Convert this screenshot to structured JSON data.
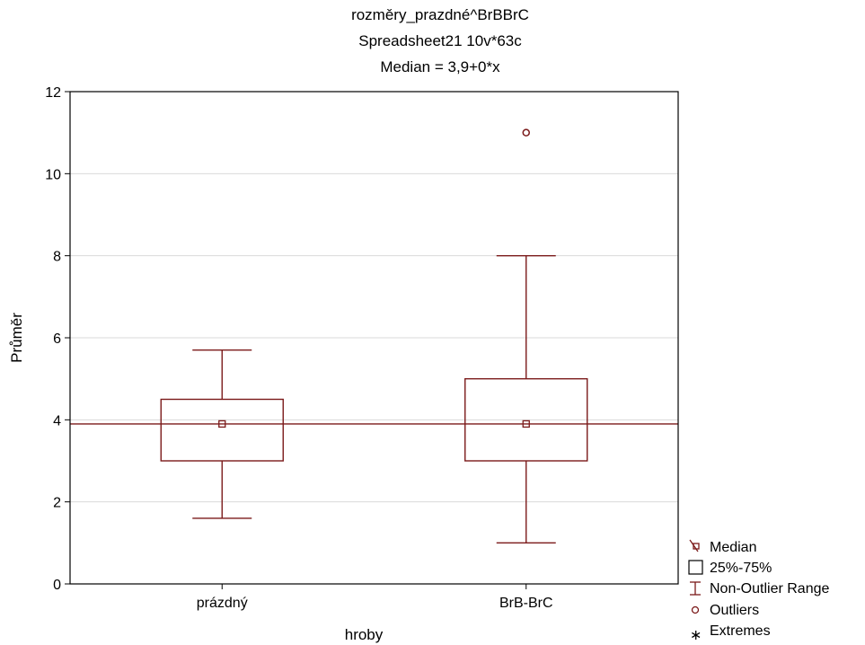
{
  "chart_data": {
    "type": "boxplot",
    "title_lines": [
      "rozměry_prazdné^BrBBrC",
      "Spreadsheet21 10v*63c",
      "Median = 3,9+0*x"
    ],
    "xlabel": "hroby",
    "ylabel": "Průměr",
    "ylim": [
      0,
      12
    ],
    "yticks": [
      0,
      2,
      4,
      6,
      8,
      10,
      12
    ],
    "grid": true,
    "categories": [
      "prázdný",
      "BrB-BrC"
    ],
    "boxes": [
      {
        "category": "prázdný",
        "median": 3.9,
        "q1": 3.0,
        "q3": 4.5,
        "whisker_low": 1.6,
        "whisker_high": 5.7,
        "outliers": []
      },
      {
        "category": "BrB-BrC",
        "median": 3.9,
        "q1": 3.0,
        "q3": 5.0,
        "whisker_low": 1.0,
        "whisker_high": 8.0,
        "outliers": [
          11.0
        ]
      }
    ],
    "median_line": {
      "intercept": 3.9,
      "slope": 0
    },
    "legend": {
      "placement": "bottom-right",
      "entries": [
        "Median",
        "25%-75%",
        "Non-Outlier Range",
        "Outliers",
        "Extremes"
      ]
    },
    "colors": {
      "series": "#7b1a1a",
      "grid": "#d9d9d9",
      "axis": "#000000"
    }
  }
}
